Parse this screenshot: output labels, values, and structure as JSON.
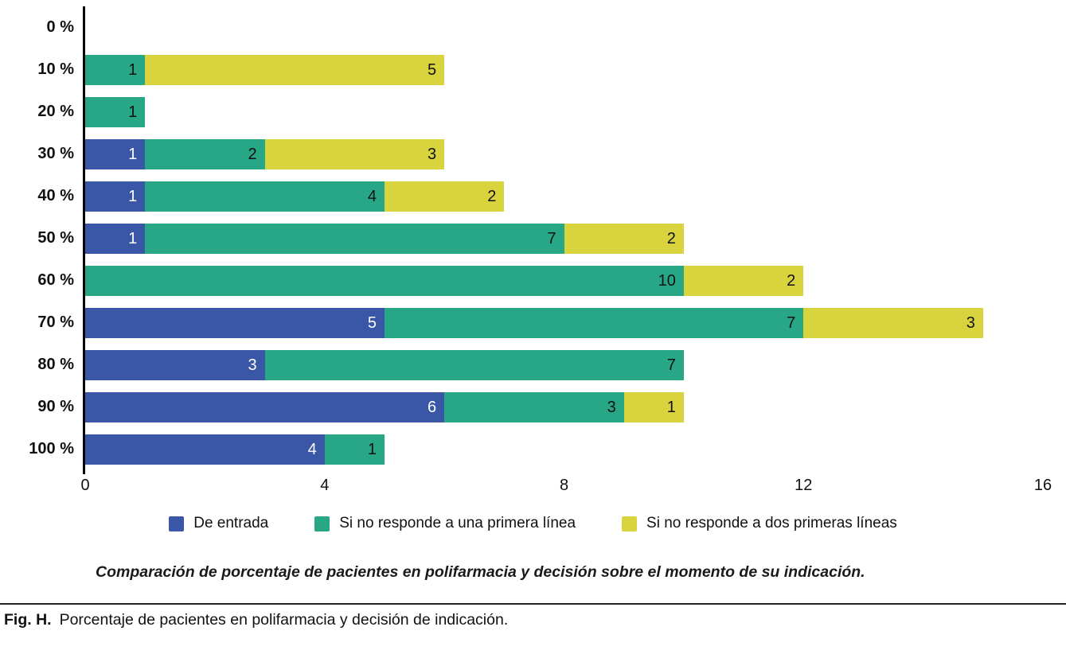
{
  "chart_data": {
    "type": "bar",
    "orientation": "horizontal",
    "stacked": true,
    "grid": false,
    "legend_position": "bottom",
    "categories": [
      "0 %",
      "10 %",
      "20 %",
      "30 %",
      "40 %",
      "50 %",
      "60 %",
      "70 %",
      "80 %",
      "90 %",
      "100 %"
    ],
    "series": [
      {
        "name": "De entrada",
        "color": "#3a56a7",
        "label_color": "#ffffff",
        "values": [
          0,
          0,
          0,
          1,
          1,
          1,
          0,
          5,
          3,
          6,
          4
        ]
      },
      {
        "name": "Si no responde a una primera línea",
        "color": "#28a786",
        "label_color": "#111111",
        "values": [
          0,
          1,
          1,
          2,
          4,
          7,
          10,
          7,
          7,
          3,
          1
        ]
      },
      {
        "name": "Si no responde a dos primeras líneas",
        "color": "#d9d33e",
        "label_color": "#111111",
        "values": [
          0,
          5,
          0,
          3,
          2,
          2,
          2,
          3,
          0,
          1,
          0
        ]
      }
    ],
    "xlim": [
      0,
      16
    ],
    "x_ticks": [
      0,
      4,
      8,
      12,
      16
    ],
    "xlabel": "",
    "ylabel": ""
  },
  "caption": "Comparación de porcentaje de pacientes en polifarmacia y decisión sobre el momento de su indicación.",
  "figure": {
    "label": "Fig. H.",
    "text": "Porcentaje de pacientes en polifarmacia y decisión de indicación."
  }
}
